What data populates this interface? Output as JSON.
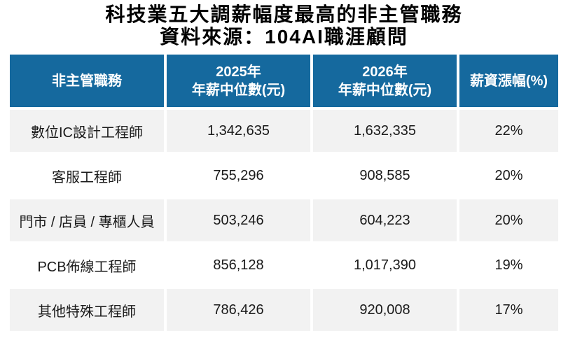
{
  "title": "科技業五大調薪幅度最高的非主管職務",
  "subtitle": "資料來源：104AI職涯顧問",
  "colors": {
    "header_bg": "#15699e",
    "header_text": "#ffffff",
    "row_alt_bg": "#f2f2f2",
    "row_bg": "#ffffff",
    "body_text": "#1a1a1a",
    "title_text": "#000000"
  },
  "table": {
    "headers": {
      "position": "非主管職務",
      "y2025_line1": "2025年",
      "y2025_line2": "年薪中位數(元)",
      "y2026_line1": "2026年",
      "y2026_line2": "年薪中位數(元)",
      "increase": "薪資漲幅(%)"
    },
    "rows": [
      {
        "position": "數位IC設計工程師",
        "salary_2025": "1,342,635",
        "salary_2026": "1,632,335",
        "increase": "22%"
      },
      {
        "position": "客服工程師",
        "salary_2025": "755,296",
        "salary_2026": "908,585",
        "increase": "20%"
      },
      {
        "position": "門市 / 店員 / 專櫃人員",
        "salary_2025": "503,246",
        "salary_2026": "604,223",
        "increase": "20%"
      },
      {
        "position": "PCB佈線工程師",
        "salary_2025": "856,128",
        "salary_2026": "1,017,390",
        "increase": "19%"
      },
      {
        "position": "其他特殊工程師",
        "salary_2025": "786,426",
        "salary_2026": "920,008",
        "increase": "17%"
      }
    ]
  },
  "chart_data": {
    "type": "table",
    "title": "科技業五大調薪幅度最高的非主管職務",
    "source": "資料來源：104AI職涯顧問",
    "columns": [
      "非主管職務",
      "2025年年薪中位數(元)",
      "2026年年薪中位數(元)",
      "薪資漲幅(%)"
    ],
    "rows": [
      [
        "數位IC設計工程師",
        1342635,
        1632335,
        "22%"
      ],
      [
        "客服工程師",
        755296,
        908585,
        "20%"
      ],
      [
        "門市 / 店員 / 專櫃人員",
        503246,
        604223,
        "20%"
      ],
      [
        "PCB佈線工程師",
        856128,
        1017390,
        "19%"
      ],
      [
        "其他特殊工程師",
        786426,
        920008,
        "17%"
      ]
    ]
  }
}
